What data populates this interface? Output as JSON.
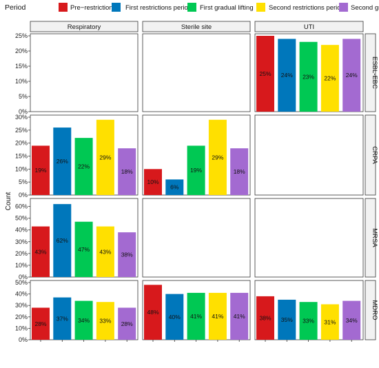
{
  "chart_data": {
    "type": "bar",
    "legend": {
      "title": "Period",
      "placement": "top",
      "entries": [
        {
          "name": "Pre−restrictions",
          "color": "#d7191c"
        },
        {
          "name": "First restrictions period",
          "color": "#0077bb"
        },
        {
          "name": "First gradual lifting",
          "color": "#00c853"
        },
        {
          "name": "Second restrictions period",
          "color": "#ffe000"
        },
        {
          "name": "Second gradual lifting",
          "color": "#a36ad1"
        }
      ]
    },
    "ylabel": "Count",
    "columns": [
      "Respiratory",
      "Sterile site",
      "UTI"
    ],
    "rows": [
      "ESBL-EBC",
      "CRPA",
      "MRSA",
      "MDRO"
    ],
    "row_ticks": {
      "ESBL-EBC": {
        "ylim": [
          0,
          25
        ],
        "ticks": [
          "0%",
          "5%",
          "10%",
          "15%",
          "20%",
          "25%"
        ]
      },
      "CRPA": {
        "ylim": [
          0,
          30
        ],
        "ticks": [
          "0%",
          "5%",
          "10%",
          "15%",
          "20%",
          "25%",
          "30%"
        ]
      },
      "MRSA": {
        "ylim": [
          0,
          65
        ],
        "ticks": [
          "0%",
          "10%",
          "20%",
          "30%",
          "40%",
          "50%",
          "60%"
        ]
      },
      "MDRO": {
        "ylim": [
          0,
          50
        ],
        "ticks": [
          "0%",
          "10%",
          "20%",
          "30%",
          "40%",
          "50%"
        ]
      }
    },
    "panels": [
      {
        "row": "ESBL-EBC",
        "column": "UTI",
        "values": [
          25,
          24,
          23,
          22,
          24
        ],
        "labels": [
          "25%",
          "24%",
          "23%",
          "22%",
          "24%"
        ]
      },
      {
        "row": "CRPA",
        "column": "Respiratory",
        "values": [
          19,
          26,
          22,
          29,
          18
        ],
        "labels": [
          "19%",
          "26%",
          "22%",
          "29%",
          "18%"
        ]
      },
      {
        "row": "CRPA",
        "column": "Sterile site",
        "values": [
          10,
          6,
          19,
          29,
          18
        ],
        "labels": [
          "10%",
          "6%",
          "19%",
          "29%",
          "18%"
        ]
      },
      {
        "row": "MRSA",
        "column": "Respiratory",
        "values": [
          43,
          62,
          47,
          43,
          38
        ],
        "labels": [
          "43%",
          "62%",
          "47%",
          "43%",
          "38%"
        ]
      },
      {
        "row": "MDRO",
        "column": "Respiratory",
        "values": [
          28,
          37,
          34,
          33,
          28
        ],
        "labels": [
          "28%",
          "37%",
          "34%",
          "33%",
          "28%"
        ]
      },
      {
        "row": "MDRO",
        "column": "Sterile site",
        "values": [
          48,
          40,
          41,
          41,
          41
        ],
        "labels": [
          "48%",
          "40%",
          "41%",
          "41%",
          "41%"
        ]
      },
      {
        "row": "MDRO",
        "column": "UTI",
        "values": [
          38,
          35,
          33,
          31,
          34
        ],
        "labels": [
          "38%",
          "35%",
          "33%",
          "31%",
          "34%"
        ]
      }
    ],
    "grid": false
  }
}
